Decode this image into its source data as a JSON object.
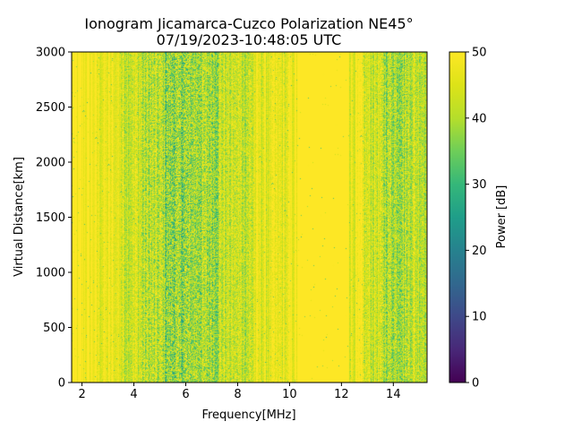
{
  "chart_data": {
    "type": "heatmap",
    "title_line1": "Ionogram Jicamarca-Cuzco Polarization NE45°",
    "title_line2": "07/19/2023-10:48:05 UTC",
    "xlabel": "Frequency[MHz]",
    "ylabel": "Virtual Distance[km]",
    "xlim": [
      1.6,
      15.3
    ],
    "ylim": [
      0,
      3000
    ],
    "x_ticks": [
      2,
      4,
      6,
      8,
      10,
      12,
      14
    ],
    "y_ticks": [
      0,
      500,
      1000,
      1500,
      2000,
      2500,
      3000
    ],
    "colorbar": {
      "label": "Power [dB]",
      "range": [
        0,
        50
      ],
      "ticks": [
        0,
        10,
        20,
        30,
        40,
        50
      ],
      "colormap": "viridis"
    },
    "power_db_approx": {
      "band_edges_mhz": [
        1.6,
        2.5,
        3.5,
        4.3,
        5.2,
        6.2,
        7.3,
        8.6,
        10.0,
        10.3,
        12.3,
        12.8,
        13.5,
        14.6,
        15.3
      ],
      "mean_power_db_by_band": [
        49,
        47,
        44,
        41,
        38,
        40,
        43,
        46,
        48,
        50,
        47,
        44,
        41,
        43
      ],
      "note_regions": []
    }
  }
}
